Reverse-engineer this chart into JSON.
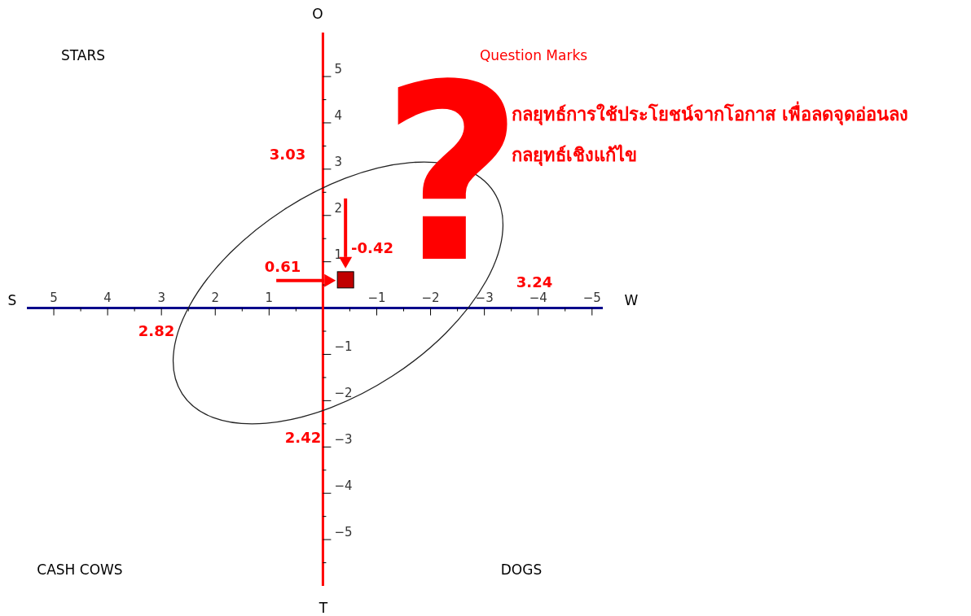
{
  "chart_data": {
    "type": "scatter",
    "marker": "square",
    "x": [
      -0.42
    ],
    "series": [
      {
        "color": "#c00000",
        "values": [
          0.61
        ]
      }
    ],
    "xlim": [
      5.5,
      -5.2
    ],
    "ylim": [
      -6.0,
      5.95
    ],
    "xticks": [
      5,
      {
        "value": 4.5,
        "label": null
      },
      4,
      {
        "value": 3.5,
        "label": null
      },
      3,
      {
        "value": 2.5,
        "label": null
      },
      2,
      {
        "value": 1.5,
        "label": null
      },
      1,
      {
        "value": 0.5,
        "label": null
      },
      {
        "value": -0.5,
        "label": null
      },
      {
        "value": -1,
        "label": "−1"
      },
      {
        "value": -1.5,
        "label": null
      },
      {
        "value": -2,
        "label": "−2"
      },
      {
        "value": -2.5,
        "label": null
      },
      {
        "value": -3,
        "label": "−3"
      },
      {
        "value": -3.5,
        "label": null
      },
      {
        "value": -4,
        "label": "−4"
      },
      {
        "value": -4.5,
        "label": null
      },
      {
        "value": -5,
        "label": "−5"
      }
    ],
    "yticks": [
      5,
      {
        "value": 4.5,
        "label": null
      },
      4,
      {
        "value": 3.5,
        "label": null
      },
      3,
      {
        "value": 2.5,
        "label": null
      },
      2,
      {
        "value": 1.5,
        "label": null
      },
      1,
      {
        "value": 0.5,
        "label": null
      },
      {
        "value": -0.5,
        "label": null
      },
      {
        "value": -1,
        "label": "−1"
      },
      {
        "value": -1.5,
        "label": null
      },
      {
        "value": -2,
        "label": "−2"
      },
      {
        "value": -2.5,
        "label": null
      },
      {
        "value": -3,
        "label": "−3"
      },
      {
        "value": -3.5,
        "label": null
      },
      {
        "value": -4,
        "label": "−4"
      },
      {
        "value": -4.5,
        "label": null
      },
      {
        "value": -5,
        "label": "−5"
      },
      {
        "value": -5.5,
        "label": null
      }
    ],
    "annotations": [
      "O",
      "T",
      "S",
      "W",
      "STARS",
      "Question Marks",
      "CASH COWS",
      "DOGS",
      "กลยุทธ์การใช้ประโยชน์จากโอกาส เพื่อลดจุดอ่อนลง",
      "กลยุทธ์เชิงแก้ไข",
      "?",
      "3.03",
      "3.24",
      "2.82",
      "2.42",
      "0.61",
      "-0.42"
    ]
  }
}
